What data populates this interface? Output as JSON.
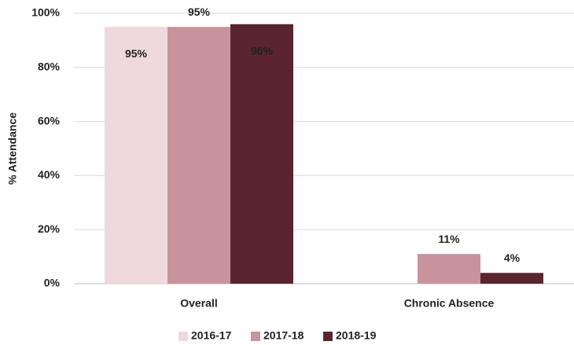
{
  "chart_data": {
    "type": "bar",
    "y_label": "% Attendance",
    "categories": [
      "Overall",
      "Chronic Absence"
    ],
    "series": [
      {
        "name": "2016-17",
        "color": "#efd9de",
        "values": [
          95,
          null
        ],
        "value_labels": [
          "95%",
          null
        ]
      },
      {
        "name": "2017-18",
        "color": "#c9939c",
        "values": [
          95,
          11
        ],
        "value_labels": [
          "95%",
          "11%"
        ]
      },
      {
        "name": "2018-19",
        "color": "#5a252e",
        "values": [
          96,
          4
        ],
        "value_labels": [
          "96%",
          "4%"
        ]
      }
    ],
    "ylim": [
      0,
      100
    ],
    "yticks": [
      {
        "value": 0,
        "label": "0%"
      },
      {
        "value": 20,
        "label": "20%"
      },
      {
        "value": 40,
        "label": "40%"
      },
      {
        "value": 60,
        "label": "60%"
      },
      {
        "value": 80,
        "label": "80%"
      },
      {
        "value": 100,
        "label": "100%"
      }
    ],
    "grid": true,
    "legend": "bottom"
  }
}
